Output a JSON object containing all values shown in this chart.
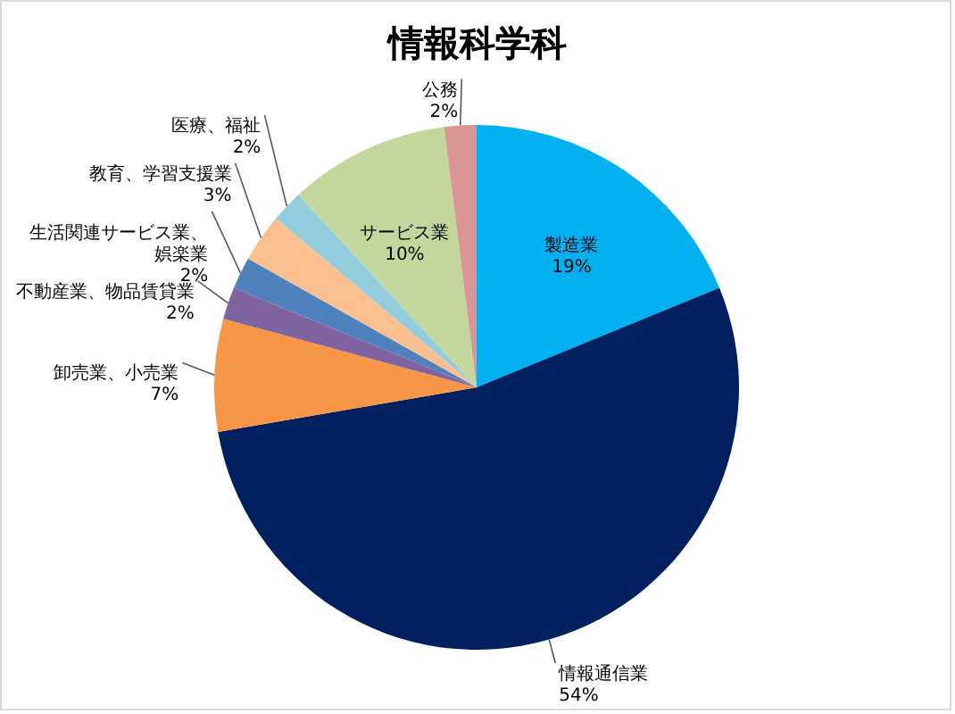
{
  "chart_data": {
    "type": "pie",
    "title": "情報科学科",
    "categories": [
      "製造業",
      "情報通信業",
      "卸売業、小売業",
      "不動産業、物品賃貸業",
      "生活関連サービス業、娯楽業",
      "教育、学習支援業",
      "医療、福祉",
      "サービス業",
      "公務"
    ],
    "values": [
      19,
      54,
      7,
      2,
      2,
      3,
      2,
      10,
      2
    ],
    "colors": [
      "#00b0f0",
      "#002060",
      "#f79646",
      "#8064a2",
      "#4f81bd",
      "#fac090",
      "#93cddd",
      "#c3d69b",
      "#d99694"
    ],
    "value_labels": [
      "19%",
      "54%",
      "7%",
      "2%",
      "2%",
      "3%",
      "2%",
      "10%",
      "2%"
    ]
  }
}
